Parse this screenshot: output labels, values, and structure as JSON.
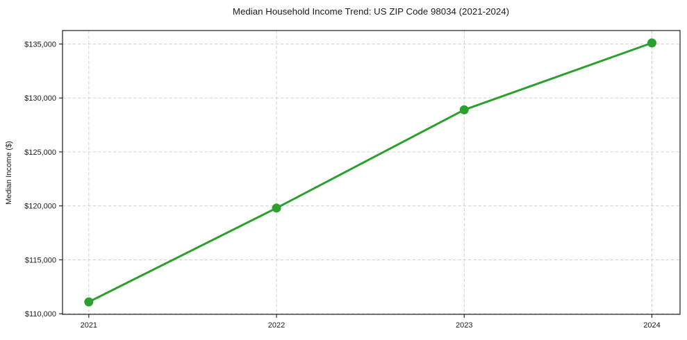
{
  "chart_data": {
    "type": "line",
    "title": "Median Household Income Trend: US ZIP Code 98034 (2021-2024)",
    "xlabel": "",
    "ylabel": "Median Income ($)",
    "x": [
      2021,
      2022,
      2023,
      2024
    ],
    "series": [
      {
        "name": "Median Household Income",
        "values": [
          111100,
          119800,
          128900,
          135100
        ]
      }
    ],
    "x_tick_labels": [
      "2021",
      "2022",
      "2023",
      "2024"
    ],
    "y_ticks": [
      110000,
      115000,
      120000,
      125000,
      130000,
      135000
    ],
    "y_tick_labels": [
      "$110,000",
      "$115,000",
      "$120,000",
      "$125,000",
      "$130,000",
      "$135,000"
    ],
    "xlim": [
      2020.86,
      2024.15
    ],
    "ylim": [
      109950,
      136250
    ],
    "grid": true,
    "grid_style": "dashed",
    "legend": "none",
    "line_color": "#2ca02c",
    "marker": "circle",
    "grid_color": "#cccccc",
    "frame_color": "#1a1a1a",
    "background_color": "#ffffff"
  }
}
